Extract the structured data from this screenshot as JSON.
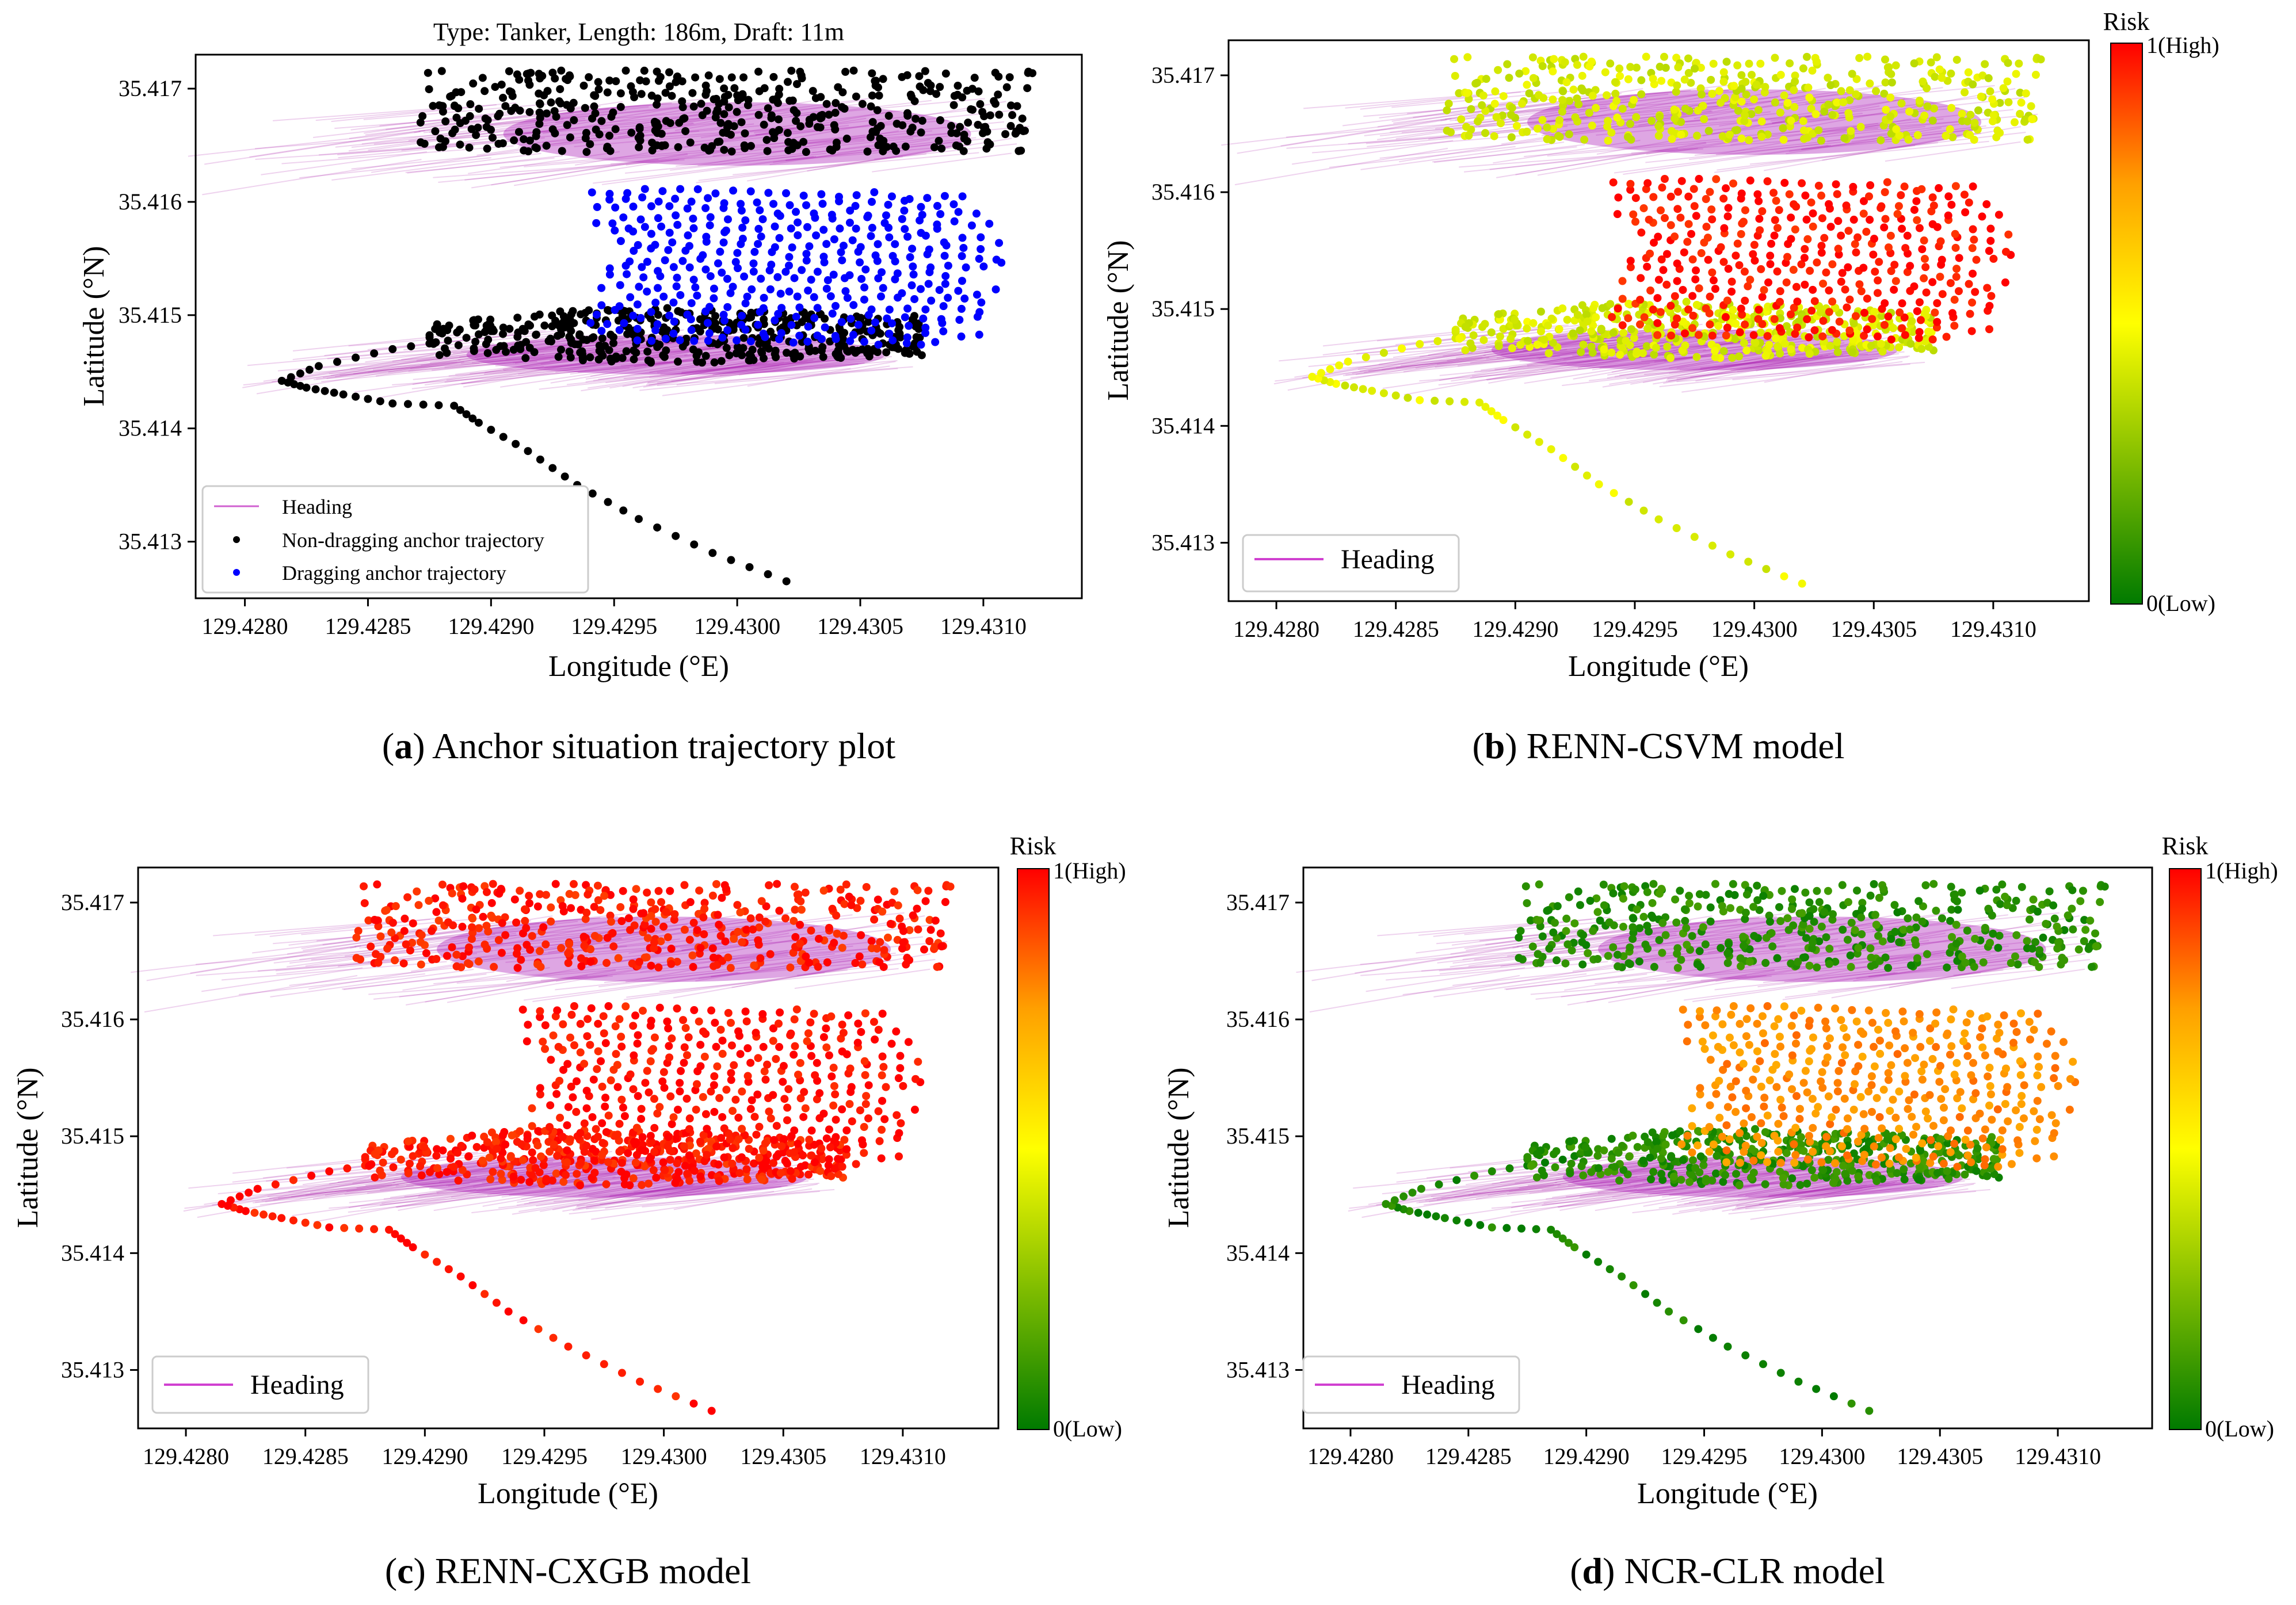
{
  "chart_data": [
    {
      "panel": "a",
      "type": "scatter",
      "title": "Type: Tanker, Length: 186m, Draft: 11m",
      "caption_letter": "a",
      "caption_text": "Anchor situation trajectory plot",
      "xlabel": "Longitude (°E)",
      "ylabel": "Latitude (°N)",
      "xlim": [
        129.4278,
        129.4314
      ],
      "ylim": [
        35.4125,
        35.4173
      ],
      "xticks": [
        "129.4280",
        "129.4285",
        "129.4290",
        "129.4295",
        "129.4300",
        "129.4305",
        "129.4310"
      ],
      "yticks": [
        "35.413",
        "35.414",
        "35.415",
        "35.416",
        "35.417"
      ],
      "legend": [
        "Heading",
        "Non-dragging anchor trajectory",
        "Dragging anchor trajectory"
      ],
      "legend_position": "lower-left",
      "color_mode": "class",
      "colors": {
        "heading": "#c040c0",
        "non_dragging": "#000000",
        "dragging": "#0000ff"
      }
    },
    {
      "panel": "b",
      "type": "scatter",
      "caption_letter": "b",
      "caption_text": "RENN-CSVM model",
      "xlabel": "Longitude (°E)",
      "ylabel": "Latitude (°N)",
      "xlim": [
        129.4278,
        129.4314
      ],
      "ylim": [
        35.4125,
        35.4173
      ],
      "xticks": [
        "129.4280",
        "129.4285",
        "129.4290",
        "129.4295",
        "129.4300",
        "129.4305",
        "129.4310"
      ],
      "yticks": [
        "35.413",
        "35.414",
        "35.415",
        "35.416",
        "35.417"
      ],
      "legend": [
        "Heading"
      ],
      "legend_position": "lower-left",
      "color_mode": "risk",
      "risk": {
        "anchor_nondrag": 0.42,
        "anchor_drag": 0.97,
        "transit": 0.45
      },
      "colorbar": {
        "title": "Risk",
        "max_label": "1(High)",
        "min_label": "0(Low)"
      }
    },
    {
      "panel": "c",
      "type": "scatter",
      "caption_letter": "c",
      "caption_text": "RENN-CXGB model",
      "xlabel": "Longitude (°E)",
      "ylabel": "Latitude (°N)",
      "xlim": [
        129.4278,
        129.4314
      ],
      "ylim": [
        35.4125,
        35.4173
      ],
      "xticks": [
        "129.4280",
        "129.4285",
        "129.4290",
        "129.4295",
        "129.4300",
        "129.4305",
        "129.4310"
      ],
      "yticks": [
        "35.413",
        "35.414",
        "35.415",
        "35.416",
        "35.417"
      ],
      "legend": [
        "Heading"
      ],
      "legend_position": "lower-left",
      "color_mode": "risk",
      "risk": {
        "anchor_nondrag": 0.96,
        "anchor_drag": 0.98,
        "transit": 0.98
      },
      "colorbar": {
        "title": "Risk",
        "max_label": "1(High)",
        "min_label": "0(Low)"
      }
    },
    {
      "panel": "d",
      "type": "scatter",
      "caption_letter": "d",
      "caption_text": "NCR-CLR model",
      "xlabel": "Longitude (°E)",
      "ylabel": "Latitude (°N)",
      "xlim": [
        129.4278,
        129.4314
      ],
      "ylim": [
        35.4125,
        35.4173
      ],
      "xticks": [
        "129.4280",
        "129.4285",
        "129.4290",
        "129.4295",
        "129.4300",
        "129.4305",
        "129.4310"
      ],
      "yticks": [
        "35.413",
        "35.414",
        "35.415",
        "35.416",
        "35.417"
      ],
      "legend": [
        "Heading"
      ],
      "legend_position": "lower-left",
      "color_mode": "risk",
      "risk": {
        "anchor_nondrag": 0.08,
        "anchor_drag": 0.78,
        "transit": 0.05
      },
      "colorbar": {
        "title": "Risk",
        "max_label": "1(High)",
        "min_label": "0(Low)"
      }
    }
  ],
  "trajectory": {
    "transit": [
      [
        129.4302,
        35.41265
      ],
      [
        129.4299,
        35.4129
      ],
      [
        129.4296,
        35.4132
      ],
      [
        129.42935,
        35.4135
      ],
      [
        129.42915,
        35.4138
      ],
      [
        129.42895,
        35.41405
      ],
      [
        129.42885,
        35.4142
      ],
      [
        129.4286,
        35.41422
      ],
      [
        129.4284,
        35.4143
      ],
      [
        129.42825,
        35.41436
      ],
      [
        129.42815,
        35.41442
      ],
      [
        129.4283,
        35.41455
      ],
      [
        129.4286,
        35.4147
      ],
      [
        129.4289,
        35.4148
      ],
      [
        129.4291,
        35.41492
      ]
    ],
    "anchor_south": {
      "cx": 129.42975,
      "cy": 35.4147,
      "rx": 0.00085,
      "ry": 0.00025,
      "x_extent": [
        129.42875,
        129.43075
      ]
    },
    "anchor_north": {
      "cx": 129.43,
      "cy": 35.41665,
      "rx": 0.00095,
      "ry": 0.0004,
      "x_extent": [
        129.4287,
        129.4312
      ]
    },
    "dragging": {
      "y_range": [
        35.4148,
        35.4161
      ],
      "x_extent": [
        129.4294,
        129.4311
      ]
    }
  }
}
